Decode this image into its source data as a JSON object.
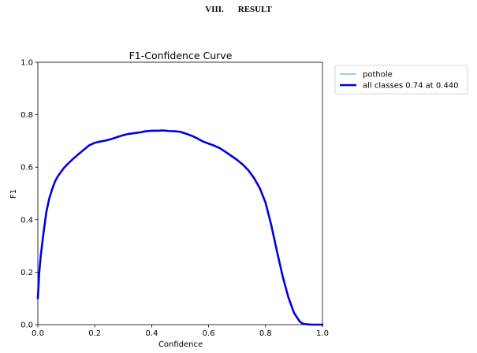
{
  "section": {
    "number": "VIII.",
    "title": "RESULT"
  },
  "chart_data": {
    "type": "line",
    "title": "F1-Confidence Curve",
    "xlabel": "Confidence",
    "ylabel": "F1",
    "xlim": [
      0.0,
      1.0
    ],
    "ylim": [
      0.0,
      1.0
    ],
    "xticks": [
      "0.0",
      "0.2",
      "0.4",
      "0.6",
      "0.8",
      "1.0"
    ],
    "yticks": [
      "0.0",
      "0.2",
      "0.4",
      "0.6",
      "0.8",
      "1.0"
    ],
    "grid": false,
    "legend_position": "outside-top-right",
    "series": [
      {
        "name": "pothole",
        "color": "#6fa8dc",
        "x": [
          0.0,
          0.005,
          0.01,
          0.02,
          0.03,
          0.04,
          0.05,
          0.06,
          0.07,
          0.08,
          0.09,
          0.1,
          0.12,
          0.14,
          0.16,
          0.18,
          0.2,
          0.22,
          0.24,
          0.26,
          0.28,
          0.3,
          0.32,
          0.34,
          0.36,
          0.38,
          0.4,
          0.42,
          0.44,
          0.46,
          0.48,
          0.5,
          0.52,
          0.54,
          0.56,
          0.58,
          0.6,
          0.62,
          0.64,
          0.66,
          0.68,
          0.7,
          0.72,
          0.74,
          0.76,
          0.78,
          0.8,
          0.82,
          0.84,
          0.86,
          0.88,
          0.9,
          0.92,
          0.93,
          0.94,
          0.95,
          0.96,
          0.98,
          1.0
        ],
        "y": [
          0.1,
          0.2,
          0.26,
          0.35,
          0.43,
          0.48,
          0.515,
          0.545,
          0.565,
          0.58,
          0.595,
          0.607,
          0.628,
          0.647,
          0.665,
          0.683,
          0.693,
          0.698,
          0.702,
          0.708,
          0.715,
          0.722,
          0.727,
          0.73,
          0.733,
          0.737,
          0.739,
          0.739,
          0.74,
          0.738,
          0.737,
          0.735,
          0.728,
          0.72,
          0.71,
          0.698,
          0.69,
          0.682,
          0.672,
          0.658,
          0.643,
          0.628,
          0.61,
          0.588,
          0.558,
          0.52,
          0.465,
          0.38,
          0.28,
          0.185,
          0.105,
          0.045,
          0.012,
          0.004,
          0.002,
          0.001,
          0.0,
          0.0,
          0.0
        ]
      },
      {
        "name": "all classes 0.74 at 0.440",
        "color": "#0000e6",
        "x": [
          0.0,
          0.005,
          0.01,
          0.02,
          0.03,
          0.04,
          0.05,
          0.06,
          0.07,
          0.08,
          0.09,
          0.1,
          0.12,
          0.14,
          0.16,
          0.18,
          0.2,
          0.22,
          0.24,
          0.26,
          0.28,
          0.3,
          0.32,
          0.34,
          0.36,
          0.38,
          0.4,
          0.42,
          0.44,
          0.46,
          0.48,
          0.5,
          0.52,
          0.54,
          0.56,
          0.58,
          0.6,
          0.62,
          0.64,
          0.66,
          0.68,
          0.7,
          0.72,
          0.74,
          0.76,
          0.78,
          0.8,
          0.82,
          0.84,
          0.86,
          0.88,
          0.9,
          0.92,
          0.93,
          0.94,
          0.95,
          0.96,
          0.98,
          1.0
        ],
        "y": [
          0.1,
          0.2,
          0.26,
          0.35,
          0.43,
          0.48,
          0.515,
          0.545,
          0.565,
          0.58,
          0.595,
          0.607,
          0.628,
          0.647,
          0.665,
          0.683,
          0.693,
          0.698,
          0.702,
          0.708,
          0.715,
          0.722,
          0.727,
          0.73,
          0.733,
          0.737,
          0.739,
          0.739,
          0.74,
          0.738,
          0.737,
          0.735,
          0.728,
          0.72,
          0.71,
          0.698,
          0.69,
          0.682,
          0.672,
          0.658,
          0.643,
          0.628,
          0.61,
          0.588,
          0.558,
          0.52,
          0.465,
          0.38,
          0.28,
          0.185,
          0.105,
          0.045,
          0.012,
          0.004,
          0.002,
          0.001,
          0.0,
          0.0,
          0.0
        ]
      }
    ]
  }
}
